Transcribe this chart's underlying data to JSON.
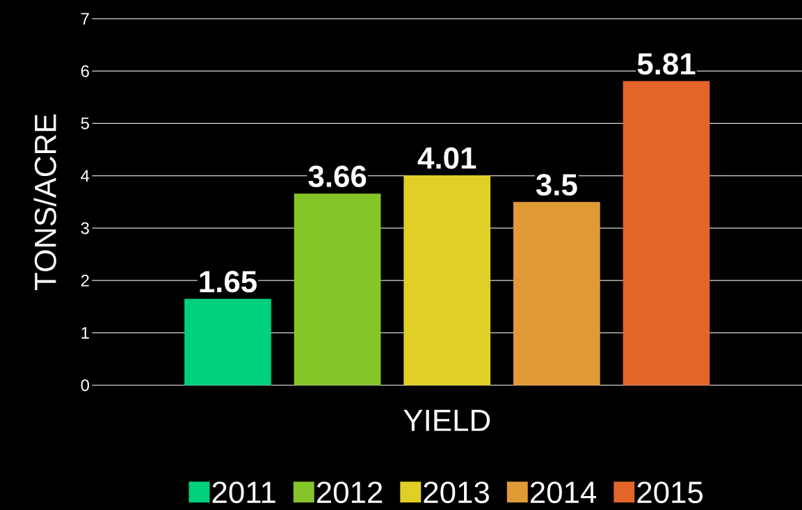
{
  "chart_data": {
    "type": "bar",
    "ylabel": "TONS/ACRE",
    "categories": [
      "YIELD"
    ],
    "series": [
      {
        "name": "2011",
        "color": "#00d17c",
        "values": [
          1.65
        ]
      },
      {
        "name": "2012",
        "color": "#86c52a",
        "values": [
          3.66
        ]
      },
      {
        "name": "2013",
        "color": "#e0cf26",
        "values": [
          4.01
        ]
      },
      {
        "name": "2014",
        "color": "#e09a35",
        "values": [
          3.5
        ]
      },
      {
        "name": "2015",
        "color": "#e3652a",
        "values": [
          5.81
        ]
      }
    ],
    "ylim": [
      0,
      7
    ],
    "yticks": [
      0,
      1,
      2,
      3,
      4,
      5,
      6,
      7
    ],
    "grid": "y",
    "legend": "bottom",
    "data_labels": true
  }
}
